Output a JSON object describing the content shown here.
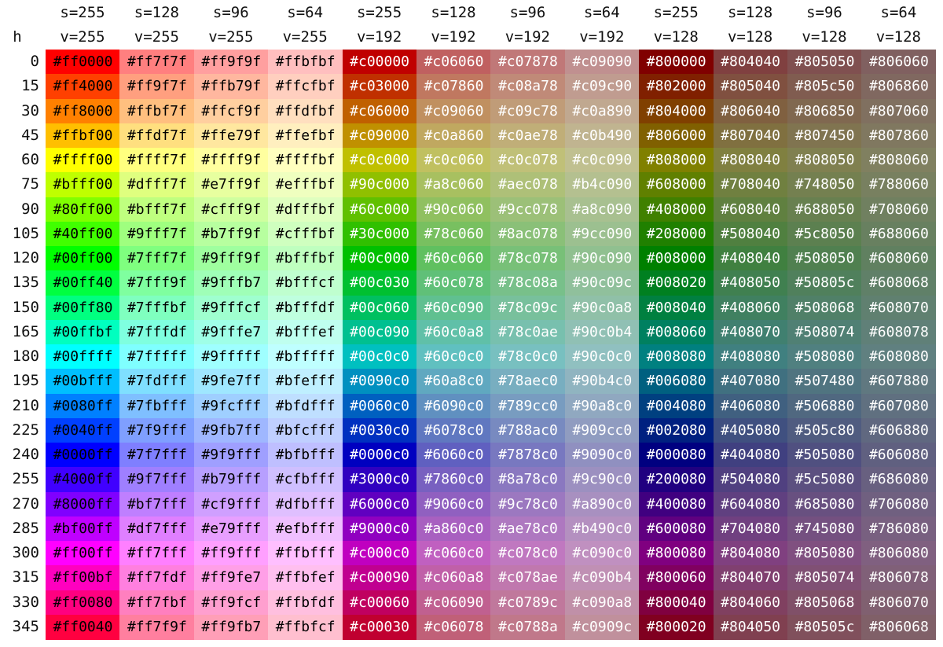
{
  "corner_label": "h",
  "column_headers": [
    {
      "s": "s=255",
      "v": "v=255"
    },
    {
      "s": "s=128",
      "v": "v=255"
    },
    {
      "s": "s=96",
      "v": "v=255"
    },
    {
      "s": "s=64",
      "v": "v=255"
    },
    {
      "s": "s=255",
      "v": "v=192"
    },
    {
      "s": "s=128",
      "v": "v=192"
    },
    {
      "s": "s=96",
      "v": "v=192"
    },
    {
      "s": "s=64",
      "v": "v=192"
    },
    {
      "s": "s=255",
      "v": "v=128"
    },
    {
      "s": "s=128",
      "v": "v=128"
    },
    {
      "s": "s=96",
      "v": "v=128"
    },
    {
      "s": "s=64",
      "v": "v=128"
    }
  ],
  "rows": [
    {
      "h": "0",
      "cells": [
        "#ff0000",
        "#ff7f7f",
        "#ff9f9f",
        "#ffbfbf",
        "#c00000",
        "#c06060",
        "#c07878",
        "#c09090",
        "#800000",
        "#804040",
        "#805050",
        "#806060"
      ]
    },
    {
      "h": "15",
      "cells": [
        "#ff4000",
        "#ff9f7f",
        "#ffb79f",
        "#ffcfbf",
        "#c03000",
        "#c07860",
        "#c08a78",
        "#c09c90",
        "#802000",
        "#805040",
        "#805c50",
        "#806860"
      ]
    },
    {
      "h": "30",
      "cells": [
        "#ff8000",
        "#ffbf7f",
        "#ffcf9f",
        "#ffdfbf",
        "#c06000",
        "#c09060",
        "#c09c78",
        "#c0a890",
        "#804000",
        "#806040",
        "#806850",
        "#807060"
      ]
    },
    {
      "h": "45",
      "cells": [
        "#ffbf00",
        "#ffdf7f",
        "#ffe79f",
        "#ffefbf",
        "#c09000",
        "#c0a860",
        "#c0ae78",
        "#c0b490",
        "#806000",
        "#807040",
        "#807450",
        "#807860"
      ]
    },
    {
      "h": "60",
      "cells": [
        "#ffff00",
        "#ffff7f",
        "#ffff9f",
        "#ffffbf",
        "#c0c000",
        "#c0c060",
        "#c0c078",
        "#c0c090",
        "#808000",
        "#808040",
        "#808050",
        "#808060"
      ]
    },
    {
      "h": "75",
      "cells": [
        "#bfff00",
        "#dfff7f",
        "#e7ff9f",
        "#efffbf",
        "#90c000",
        "#a8c060",
        "#aec078",
        "#b4c090",
        "#608000",
        "#708040",
        "#748050",
        "#788060"
      ]
    },
    {
      "h": "90",
      "cells": [
        "#80ff00",
        "#bfff7f",
        "#cfff9f",
        "#dfffbf",
        "#60c000",
        "#90c060",
        "#9cc078",
        "#a8c090",
        "#408000",
        "#608040",
        "#688050",
        "#708060"
      ]
    },
    {
      "h": "105",
      "cells": [
        "#40ff00",
        "#9fff7f",
        "#b7ff9f",
        "#cfffbf",
        "#30c000",
        "#78c060",
        "#8ac078",
        "#9cc090",
        "#208000",
        "#508040",
        "#5c8050",
        "#688060"
      ]
    },
    {
      "h": "120",
      "cells": [
        "#00ff00",
        "#7fff7f",
        "#9fff9f",
        "#bfffbf",
        "#00c000",
        "#60c060",
        "#78c078",
        "#90c090",
        "#008000",
        "#408040",
        "#508050",
        "#608060"
      ]
    },
    {
      "h": "135",
      "cells": [
        "#00ff40",
        "#7fff9f",
        "#9fffb7",
        "#bfffcf",
        "#00c030",
        "#60c078",
        "#78c08a",
        "#90c09c",
        "#008020",
        "#408050",
        "#50805c",
        "#608068"
      ]
    },
    {
      "h": "150",
      "cells": [
        "#00ff80",
        "#7fffbf",
        "#9fffcf",
        "#bfffdf",
        "#00c060",
        "#60c090",
        "#78c09c",
        "#90c0a8",
        "#008040",
        "#408060",
        "#508068",
        "#608070"
      ]
    },
    {
      "h": "165",
      "cells": [
        "#00ffbf",
        "#7fffdf",
        "#9fffe7",
        "#bfffef",
        "#00c090",
        "#60c0a8",
        "#78c0ae",
        "#90c0b4",
        "#008060",
        "#408070",
        "#508074",
        "#608078"
      ]
    },
    {
      "h": "180",
      "cells": [
        "#00ffff",
        "#7fffff",
        "#9fffff",
        "#bfffff",
        "#00c0c0",
        "#60c0c0",
        "#78c0c0",
        "#90c0c0",
        "#008080",
        "#408080",
        "#508080",
        "#608080"
      ]
    },
    {
      "h": "195",
      "cells": [
        "#00bfff",
        "#7fdfff",
        "#9fe7ff",
        "#bfefff",
        "#0090c0",
        "#60a8c0",
        "#78aec0",
        "#90b4c0",
        "#006080",
        "#407080",
        "#507480",
        "#607880"
      ]
    },
    {
      "h": "210",
      "cells": [
        "#0080ff",
        "#7fbfff",
        "#9fcfff",
        "#bfdfff",
        "#0060c0",
        "#6090c0",
        "#789cc0",
        "#90a8c0",
        "#004080",
        "#406080",
        "#506880",
        "#607080"
      ]
    },
    {
      "h": "225",
      "cells": [
        "#0040ff",
        "#7f9fff",
        "#9fb7ff",
        "#bfcfff",
        "#0030c0",
        "#6078c0",
        "#788ac0",
        "#909cc0",
        "#002080",
        "#405080",
        "#505c80",
        "#606880"
      ]
    },
    {
      "h": "240",
      "cells": [
        "#0000ff",
        "#7f7fff",
        "#9f9fff",
        "#bfbfff",
        "#0000c0",
        "#6060c0",
        "#7878c0",
        "#9090c0",
        "#000080",
        "#404080",
        "#505080",
        "#606080"
      ]
    },
    {
      "h": "255",
      "cells": [
        "#4000ff",
        "#9f7fff",
        "#b79fff",
        "#cfbfff",
        "#3000c0",
        "#7860c0",
        "#8a78c0",
        "#9c90c0",
        "#200080",
        "#504080",
        "#5c5080",
        "#686080"
      ]
    },
    {
      "h": "270",
      "cells": [
        "#8000ff",
        "#bf7fff",
        "#cf9fff",
        "#dfbfff",
        "#6000c0",
        "#9060c0",
        "#9c78c0",
        "#a890c0",
        "#400080",
        "#604080",
        "#685080",
        "#706080"
      ]
    },
    {
      "h": "285",
      "cells": [
        "#bf00ff",
        "#df7fff",
        "#e79fff",
        "#efbfff",
        "#9000c0",
        "#a860c0",
        "#ae78c0",
        "#b490c0",
        "#600080",
        "#704080",
        "#745080",
        "#786080"
      ]
    },
    {
      "h": "300",
      "cells": [
        "#ff00ff",
        "#ff7fff",
        "#ff9fff",
        "#ffbfff",
        "#c000c0",
        "#c060c0",
        "#c078c0",
        "#c090c0",
        "#800080",
        "#804080",
        "#805080",
        "#806080"
      ]
    },
    {
      "h": "315",
      "cells": [
        "#ff00bf",
        "#ff7fdf",
        "#ff9fe7",
        "#ffbfef",
        "#c00090",
        "#c060a8",
        "#c078ae",
        "#c090b4",
        "#800060",
        "#804070",
        "#805074",
        "#806078"
      ]
    },
    {
      "h": "330",
      "cells": [
        "#ff0080",
        "#ff7fbf",
        "#ff9fcf",
        "#ffbfdf",
        "#c00060",
        "#c06090",
        "#c0789c",
        "#c090a8",
        "#800040",
        "#804060",
        "#805068",
        "#806070"
      ]
    },
    {
      "h": "345",
      "cells": [
        "#ff0040",
        "#ff7f9f",
        "#ff9fb7",
        "#ffbfcf",
        "#c00030",
        "#c06078",
        "#c0788a",
        "#c0909c",
        "#800020",
        "#804050",
        "#80505c",
        "#806068"
      ]
    }
  ]
}
